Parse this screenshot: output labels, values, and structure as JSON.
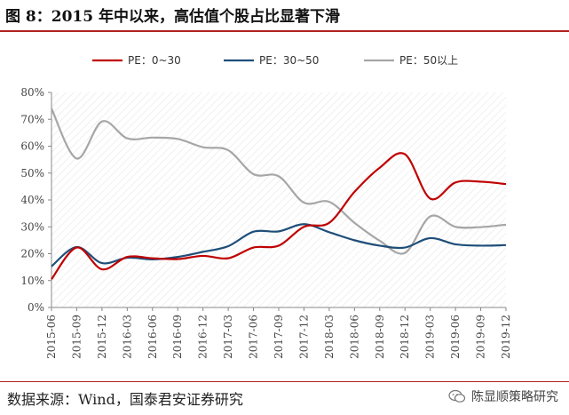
{
  "header": {
    "title": "图 8：2015 年中以来，高估值个股占比显著下滑"
  },
  "footer": {
    "source": "数据来源：Wind，国泰君安证券研究",
    "brand": "陈显顺策略研究"
  },
  "colors": {
    "series1": "#c00000",
    "series2": "#1f4e79",
    "series3": "#a6a6a6",
    "rule": "#b22222"
  },
  "chart_data": {
    "type": "line",
    "title": "",
    "xlabel": "",
    "ylabel": "",
    "ylim": [
      0,
      80
    ],
    "y_ticks": [
      "0%",
      "10%",
      "20%",
      "30%",
      "40%",
      "50%",
      "60%",
      "70%",
      "80%"
    ],
    "grid": false,
    "legend": "top",
    "categories": [
      "2015-06",
      "2015-09",
      "2015-12",
      "2016-03",
      "2016-06",
      "2016-09",
      "2016-12",
      "2017-03",
      "2017-06",
      "2017-09",
      "2017-12",
      "2018-03",
      "2018-06",
      "2018-09",
      "2018-12",
      "2019-03",
      "2019-06",
      "2019-09",
      "2019-12"
    ],
    "series": [
      {
        "name": "PE：0~30",
        "color": "#c00000",
        "values": [
          10.5,
          22.3,
          14.2,
          18.8,
          18.3,
          18.0,
          19.2,
          18.3,
          22.3,
          23.0,
          30.0,
          31.5,
          43.0,
          52.0,
          57.0,
          40.5,
          46.5,
          46.8,
          45.9
        ]
      },
      {
        "name": "PE：30~50",
        "color": "#1f4e79",
        "values": [
          15.3,
          22.5,
          16.5,
          18.5,
          17.9,
          18.8,
          20.7,
          22.8,
          28.2,
          28.3,
          31.0,
          28.0,
          25.0,
          23.0,
          22.3,
          25.8,
          23.5,
          23.0,
          23.2
        ]
      },
      {
        "name": "PE：50以上",
        "color": "#a6a6a6",
        "values": [
          74.0,
          55.4,
          69.2,
          62.9,
          63.2,
          62.7,
          59.6,
          58.5,
          49.6,
          48.8,
          39.0,
          39.3,
          31.5,
          24.8,
          20.3,
          33.9,
          30.0,
          29.9,
          30.8
        ]
      }
    ]
  }
}
